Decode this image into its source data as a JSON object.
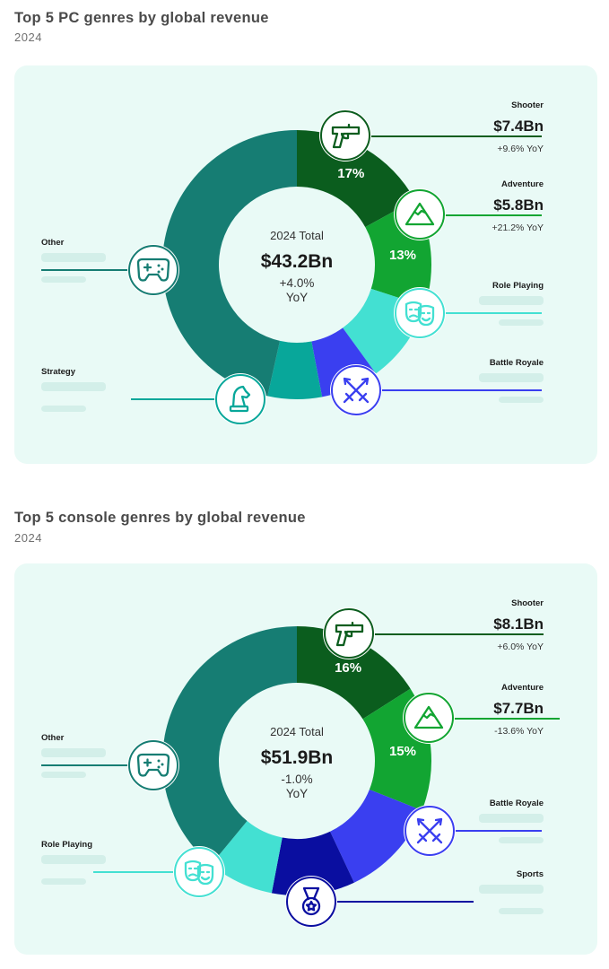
{
  "charts": [
    {
      "title": "Top 5 PC genres by global revenue",
      "subtitle": "2024",
      "center": {
        "label": "2024 Total",
        "value": "$43.2Bn",
        "change": "+4.0%",
        "change_unit": "YoY"
      },
      "genres": [
        {
          "label": "Shooter",
          "value": "$7.4Bn",
          "change": "+9.6% YoY"
        },
        {
          "label": "Adventure",
          "value": "$5.8Bn",
          "change": "+21.2% YoY"
        },
        {
          "label": "Role Playing",
          "value": "",
          "change": ""
        },
        {
          "label": "Battle Royale",
          "value": "",
          "change": ""
        },
        {
          "label": "Strategy",
          "value": "",
          "change": ""
        },
        {
          "label": "Other",
          "value": "",
          "change": ""
        }
      ]
    },
    {
      "title": "Top 5 console genres by global revenue",
      "subtitle": "2024",
      "center": {
        "label": "2024 Total",
        "value": "$51.9Bn",
        "change": "-1.0%",
        "change_unit": "YoY"
      },
      "genres": [
        {
          "label": "Shooter",
          "value": "$8.1Bn",
          "change": "+6.0% YoY"
        },
        {
          "label": "Adventure",
          "value": "$7.7Bn",
          "change": "-13.6% YoY"
        },
        {
          "label": "Battle Royale",
          "value": "",
          "change": ""
        },
        {
          "label": "Sports",
          "value": "",
          "change": ""
        },
        {
          "label": "Role Playing",
          "value": "",
          "change": ""
        },
        {
          "label": "Other",
          "value": "",
          "change": ""
        }
      ]
    }
  ],
  "chart_data": [
    {
      "type": "pie",
      "title": "Top 5 PC genres by global revenue",
      "subtitle": "2024",
      "total": "$43.2Bn",
      "total_change": "+4.0% YoY",
      "slices": [
        {
          "name": "Shooter",
          "share": 17,
          "revenue_bn": 7.4,
          "yoy_pct": 9.6,
          "label": "17%",
          "color": "#0b5d1e"
        },
        {
          "name": "Adventure",
          "share": 13,
          "revenue_bn": 5.8,
          "yoy_pct": 21.2,
          "label": "13%",
          "color": "#12a532"
        },
        {
          "name": "Role Playing",
          "share": 10,
          "label": "",
          "color": "#43e0d2"
        },
        {
          "name": "Battle Royale",
          "share": 7,
          "label": "",
          "color": "#3a3ff0"
        },
        {
          "name": "Strategy",
          "share": 6.5,
          "label": "",
          "color": "#08a79a"
        },
        {
          "name": "Other",
          "share": 46.5,
          "label": "",
          "color": "#167d73"
        }
      ]
    },
    {
      "type": "pie",
      "title": "Top 5 console genres by global revenue",
      "subtitle": "2024",
      "total": "$51.9Bn",
      "total_change": "-1.0% YoY",
      "slices": [
        {
          "name": "Shooter",
          "share": 16,
          "revenue_bn": 8.1,
          "yoy_pct": 6.0,
          "label": "16%",
          "color": "#0b5d1e"
        },
        {
          "name": "Adventure",
          "share": 15,
          "revenue_bn": 7.7,
          "yoy_pct": -13.6,
          "label": "15%",
          "color": "#12a532"
        },
        {
          "name": "Battle Royale",
          "share": 12,
          "label": "",
          "color": "#3a3ff0"
        },
        {
          "name": "Sports",
          "share": 10,
          "label": "",
          "color": "#0a0ea0"
        },
        {
          "name": "Role Playing",
          "share": 8,
          "label": "",
          "color": "#43e0d2"
        },
        {
          "name": "Other",
          "share": 39,
          "label": "",
          "color": "#167d73"
        }
      ]
    }
  ],
  "colors": {
    "card_bg": "#e9faf6",
    "placeholder": "#d3efe9",
    "text_dark": "#1a1a1a"
  },
  "icons": [
    "pistol-icon",
    "mountain-icon",
    "theater-masks-icon",
    "crossed-swords-icon",
    "chess-knight-icon",
    "gamepad-icon",
    "medal-icon"
  ]
}
